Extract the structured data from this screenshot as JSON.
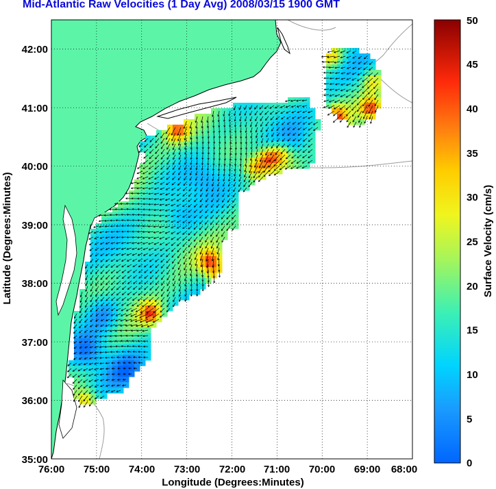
{
  "title": "Mid-Atlantic Raw Velocities (1 Day Avg) 2008/03/15 1900 GMT",
  "map": {
    "x_axis_label": "Longitude (Degrees:Minutes)",
    "y_axis_label": "Latitude (Degrees:Minutes)",
    "x_ticks": [
      "76:00",
      "75:00",
      "74:00",
      "73:00",
      "72:00",
      "71:00",
      "70:00",
      "69:00",
      "68:00"
    ],
    "y_ticks": [
      "42:00",
      "41:00",
      "40:00",
      "39:00",
      "38:00",
      "37:00",
      "36:00",
      "35:00"
    ],
    "x_range": [
      -76,
      -68
    ],
    "y_range": [
      35,
      42.5
    ],
    "grid": "dotted",
    "colors": {
      "land": "#5cf5a8",
      "ocean": "#ffffff",
      "coastline": "#000000",
      "bathymetry": "#9a9a9a",
      "vector": "#000000"
    }
  },
  "colorbar": {
    "label": "Surface Velocity (cm/s)",
    "ticks": [
      "0",
      "5",
      "10",
      "15",
      "20",
      "25",
      "30",
      "35",
      "40",
      "45",
      "50"
    ],
    "range": [
      0,
      50
    ],
    "colormap": "jet"
  }
}
